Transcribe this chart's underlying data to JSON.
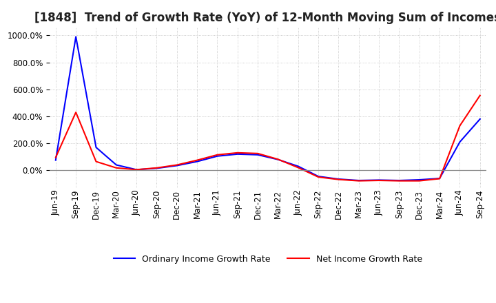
{
  "title": "[1848]  Trend of Growth Rate (YoY) of 12-Month Moving Sum of Incomes",
  "title_fontsize": 12,
  "tick_fontsize": 8.5,
  "legend_labels": [
    "Ordinary Income Growth Rate",
    "Net Income Growth Rate"
  ],
  "line_colors": [
    "#0000ff",
    "#ff0000"
  ],
  "background_color": "#ffffff",
  "grid_color": "#bbbbbb",
  "ylim": [
    -130,
    1060
  ],
  "yticks": [
    0.0,
    200.0,
    400.0,
    600.0,
    800.0,
    1000.0
  ],
  "dates": [
    "Jun-19",
    "Sep-19",
    "Dec-19",
    "Mar-20",
    "Jun-20",
    "Sep-20",
    "Dec-20",
    "Mar-21",
    "Jun-21",
    "Sep-21",
    "Dec-21",
    "Mar-22",
    "Jun-22",
    "Sep-22",
    "Dec-22",
    "Mar-23",
    "Jun-23",
    "Sep-23",
    "Dec-23",
    "Mar-24",
    "Jun-24",
    "Sep-24"
  ],
  "ordinary_income": [
    75,
    990,
    170,
    40,
    5,
    15,
    35,
    65,
    105,
    120,
    115,
    80,
    30,
    -45,
    -65,
    -75,
    -72,
    -75,
    -70,
    -60,
    210,
    380
  ],
  "net_income": [
    95,
    430,
    65,
    18,
    5,
    18,
    40,
    75,
    115,
    130,
    125,
    82,
    20,
    -50,
    -68,
    -78,
    -75,
    -78,
    -78,
    -62,
    330,
    555
  ]
}
